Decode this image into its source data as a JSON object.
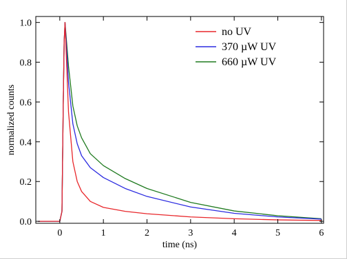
{
  "chart_data": {
    "type": "line",
    "title": "",
    "xlabel": "time (ns)",
    "ylabel": "normalized counts",
    "xlim": [
      -0.55,
      6.05
    ],
    "ylim": [
      -0.01,
      1.03
    ],
    "x_ticks": [
      0,
      1,
      2,
      3,
      4,
      5,
      6
    ],
    "x_tick_labels": [
      "0",
      "1",
      "2",
      "3",
      "4",
      "5",
      "6"
    ],
    "y_ticks": [
      0.0,
      0.2,
      0.4,
      0.6,
      0.8,
      1.0
    ],
    "y_tick_labels": [
      "0.0",
      "0.2",
      "0.4",
      "0.6",
      "0.8",
      "1.0"
    ],
    "grid": false,
    "legend_position": "top-right",
    "series": [
      {
        "name": "no UV",
        "color": "#e8262a",
        "x": [
          -0.5,
          0.0,
          0.05,
          0.08,
          0.1,
          0.12,
          0.2,
          0.3,
          0.4,
          0.5,
          0.7,
          1.0,
          1.5,
          2.0,
          3.0,
          4.0,
          5.0,
          6.0
        ],
        "y": [
          0.0,
          0.0,
          0.05,
          0.6,
          0.9,
          1.0,
          0.55,
          0.3,
          0.2,
          0.15,
          0.1,
          0.07,
          0.05,
          0.038,
          0.022,
          0.013,
          0.007,
          0.004
        ]
      },
      {
        "name": "370 µW UV",
        "color": "#2a2ae0",
        "x": [
          -0.5,
          0.0,
          0.05,
          0.08,
          0.1,
          0.12,
          0.2,
          0.3,
          0.4,
          0.5,
          0.7,
          1.0,
          1.5,
          2.0,
          3.0,
          4.0,
          5.0,
          6.0
        ],
        "y": [
          0.0,
          0.0,
          0.05,
          0.6,
          0.9,
          1.0,
          0.7,
          0.49,
          0.39,
          0.33,
          0.27,
          0.22,
          0.165,
          0.125,
          0.072,
          0.04,
          0.022,
          0.011
        ]
      },
      {
        "name": "660 µW UV",
        "color": "#1f7a1f",
        "x": [
          -0.5,
          0.0,
          0.05,
          0.08,
          0.1,
          0.12,
          0.2,
          0.3,
          0.4,
          0.5,
          0.7,
          1.0,
          1.5,
          2.0,
          3.0,
          4.0,
          5.0,
          6.0
        ],
        "y": [
          0.0,
          0.0,
          0.05,
          0.6,
          0.9,
          1.0,
          0.78,
          0.58,
          0.48,
          0.42,
          0.34,
          0.28,
          0.215,
          0.165,
          0.095,
          0.052,
          0.028,
          0.013
        ]
      }
    ]
  }
}
